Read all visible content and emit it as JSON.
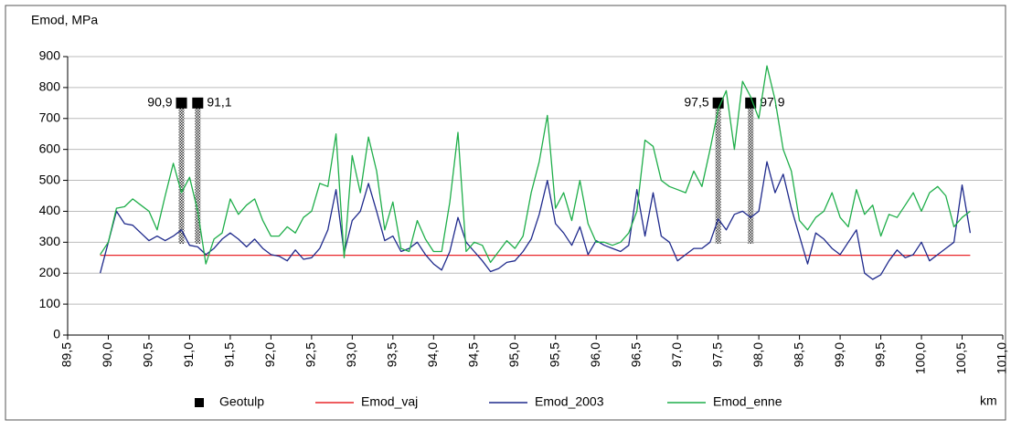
{
  "chart_data": {
    "type": "line",
    "y_label": "Emod, MPa",
    "x_label": "km",
    "xlim": [
      89.5,
      101.0
    ],
    "ylim": [
      0,
      900
    ],
    "yticks": [
      0,
      100,
      200,
      300,
      400,
      500,
      600,
      700,
      800,
      900
    ],
    "xticks": [
      {
        "value": 89.5,
        "label": "89,5"
      },
      {
        "value": 90.0,
        "label": "90,0"
      },
      {
        "value": 90.5,
        "label": "90,5"
      },
      {
        "value": 91.0,
        "label": "91,0"
      },
      {
        "value": 91.5,
        "label": "91,5"
      },
      {
        "value": 92.0,
        "label": "92,0"
      },
      {
        "value": 92.5,
        "label": "92,5"
      },
      {
        "value": 93.0,
        "label": "93,0"
      },
      {
        "value": 93.5,
        "label": "93,5"
      },
      {
        "value": 94.0,
        "label": "94,0"
      },
      {
        "value": 94.5,
        "label": "94,5"
      },
      {
        "value": 95.0,
        "label": "95,0"
      },
      {
        "value": 95.5,
        "label": "95,5"
      },
      {
        "value": 96.0,
        "label": "96,0"
      },
      {
        "value": 96.5,
        "label": "96,5"
      },
      {
        "value": 97.0,
        "label": "97,0"
      },
      {
        "value": 97.5,
        "label": "97,5"
      },
      {
        "value": 98.0,
        "label": "98,0"
      },
      {
        "value": 98.5,
        "label": "98,5"
      },
      {
        "value": 99.0,
        "label": "99,0"
      },
      {
        "value": 99.5,
        "label": "99,5"
      },
      {
        "value": 100.0,
        "label": "100,0"
      },
      {
        "value": 100.5,
        "label": "100,5"
      },
      {
        "value": 101.0,
        "label": "101,0"
      }
    ],
    "grid": true,
    "x": [
      89.9,
      90.0,
      90.1,
      90.2,
      90.3,
      90.4,
      90.5,
      90.6,
      90.7,
      90.8,
      90.9,
      91.0,
      91.1,
      91.2,
      91.3,
      91.4,
      91.5,
      91.6,
      91.7,
      91.8,
      91.9,
      92.0,
      92.1,
      92.2,
      92.3,
      92.4,
      92.5,
      92.6,
      92.7,
      92.8,
      92.9,
      93.0,
      93.1,
      93.2,
      93.3,
      93.4,
      93.5,
      93.6,
      93.7,
      93.8,
      93.9,
      94.0,
      94.1,
      94.2,
      94.3,
      94.4,
      94.5,
      94.6,
      94.7,
      94.8,
      94.9,
      95.0,
      95.1,
      95.2,
      95.3,
      95.4,
      95.5,
      95.6,
      95.7,
      95.8,
      95.9,
      96.0,
      96.1,
      96.2,
      96.3,
      96.4,
      96.5,
      96.6,
      96.7,
      96.8,
      96.9,
      97.0,
      97.1,
      97.2,
      97.3,
      97.4,
      97.5,
      97.6,
      97.7,
      97.8,
      97.9,
      98.0,
      98.1,
      98.2,
      98.3,
      98.4,
      98.5,
      98.6,
      98.7,
      98.8,
      98.9,
      99.0,
      99.1,
      99.2,
      99.3,
      99.4,
      99.5,
      99.6,
      99.7,
      99.8,
      99.9,
      100.0,
      100.1,
      100.2,
      100.3,
      100.4,
      100.5,
      100.6
    ],
    "series": [
      {
        "name": "Geotulp",
        "type": "marker",
        "color": "#000000",
        "x": [
          90.9,
          91.1,
          97.5,
          97.9
        ],
        "values": [
          750,
          750,
          750,
          750
        ],
        "low": [
          295,
          295,
          295,
          295
        ],
        "labels": [
          "90,9",
          "91,1",
          "97,5",
          "97,9"
        ]
      },
      {
        "name": "Emod_vaj",
        "color": "#e8262a",
        "x": [
          89.9,
          100.6
        ],
        "values": [
          258,
          258
        ]
      },
      {
        "name": "Emod_2003",
        "color": "#1f2a8c",
        "values": [
          200,
          300,
          400,
          360,
          355,
          330,
          305,
          320,
          305,
          320,
          340,
          290,
          285,
          260,
          280,
          310,
          330,
          310,
          285,
          310,
          280,
          260,
          255,
          240,
          275,
          245,
          250,
          280,
          340,
          470,
          265,
          370,
          400,
          490,
          400,
          305,
          320,
          270,
          280,
          300,
          260,
          230,
          210,
          270,
          380,
          300,
          270,
          240,
          205,
          215,
          235,
          240,
          270,
          310,
          390,
          500,
          360,
          330,
          290,
          350,
          260,
          305,
          290,
          280,
          270,
          290,
          470,
          320,
          460,
          320,
          300,
          240,
          260,
          280,
          280,
          300,
          375,
          340,
          390,
          400,
          380,
          400,
          560,
          460,
          520,
          410,
          320,
          230,
          330,
          310,
          280,
          260,
          300,
          340,
          200,
          180,
          195,
          240,
          275,
          250,
          260,
          300,
          240,
          260,
          280,
          300,
          485,
          330
        ]
      },
      {
        "name": "Emod_enne",
        "color": "#1fae4a",
        "values": [
          260,
          300,
          410,
          415,
          440,
          420,
          400,
          340,
          450,
          555,
          460,
          510,
          400,
          230,
          310,
          330,
          440,
          390,
          420,
          440,
          370,
          320,
          320,
          350,
          330,
          380,
          400,
          490,
          480,
          650,
          250,
          580,
          460,
          640,
          530,
          340,
          430,
          280,
          270,
          370,
          310,
          270,
          270,
          430,
          655,
          270,
          300,
          290,
          235,
          270,
          305,
          280,
          320,
          460,
          560,
          710,
          410,
          460,
          370,
          500,
          360,
          300,
          300,
          290,
          300,
          330,
          400,
          630,
          610,
          500,
          480,
          470,
          460,
          530,
          480,
          600,
          730,
          790,
          600,
          820,
          770,
          700,
          870,
          760,
          600,
          530,
          370,
          340,
          380,
          400,
          460,
          380,
          350,
          470,
          390,
          420,
          320,
          390,
          380,
          420,
          460,
          400,
          460,
          480,
          450,
          350,
          380,
          400
        ]
      }
    ]
  }
}
